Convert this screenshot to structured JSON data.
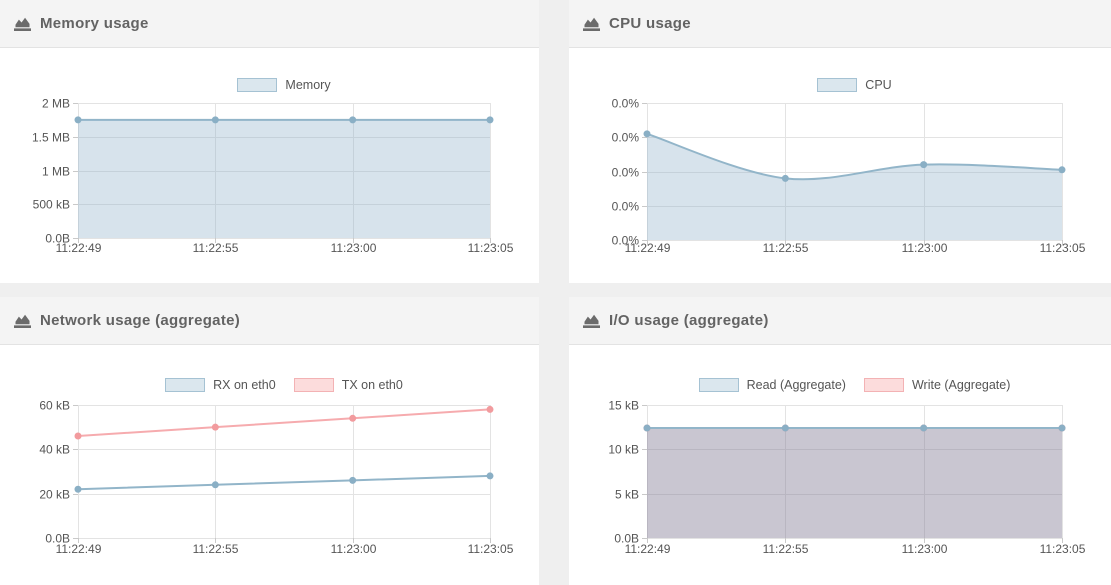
{
  "panels": [
    {
      "title": "Memory usage",
      "icon": "area-chart-icon",
      "chart_data": {
        "type": "area",
        "x": [
          "11:22:49",
          "11:22:55",
          "11:23:00",
          "11:23:05"
        ],
        "y_ticks": [
          "2 MB",
          "1.5 MB",
          "1 MB",
          "500 kB",
          "0.0B"
        ],
        "ylim": [
          0,
          2
        ],
        "y_unit": "MB",
        "grid": true,
        "legend_position": "top-center",
        "smooth": false,
        "series": [
          {
            "name": "Memory",
            "color": "blue",
            "fill": "self",
            "values": [
              1.75,
              1.75,
              1.75,
              1.75
            ]
          }
        ]
      }
    },
    {
      "title": "CPU usage",
      "icon": "area-chart-icon",
      "chart_data": {
        "type": "area",
        "x": [
          "11:22:49",
          "11:22:55",
          "11:23:00",
          "11:23:05"
        ],
        "y_ticks": [
          "0.0%",
          "0.0%",
          "0.0%",
          "0.0%",
          "0.0%"
        ],
        "ylim": [
          0,
          0.04
        ],
        "y_unit": "%",
        "grid": true,
        "legend_position": "top-center",
        "smooth": true,
        "series": [
          {
            "name": "CPU",
            "color": "blue",
            "fill": "self",
            "values": [
              0.031,
              0.018,
              0.022,
              0.0205
            ]
          }
        ]
      }
    },
    {
      "title": "Network usage (aggregate)",
      "icon": "area-chart-icon",
      "chart_data": {
        "type": "line",
        "x": [
          "11:22:49",
          "11:22:55",
          "11:23:00",
          "11:23:05"
        ],
        "y_ticks": [
          "60 kB",
          "40 kB",
          "20 kB",
          "0.0B"
        ],
        "ylim": [
          0,
          60
        ],
        "y_unit": "kB",
        "grid": true,
        "legend_position": "top-center",
        "smooth": false,
        "series": [
          {
            "name": "RX on eth0",
            "color": "blue",
            "fill": "none",
            "values": [
              22,
              24,
              26,
              28
            ]
          },
          {
            "name": "TX on eth0",
            "color": "pink",
            "fill": "none",
            "values": [
              46,
              50,
              54,
              58
            ]
          }
        ]
      }
    },
    {
      "title": "I/O usage (aggregate)",
      "icon": "area-chart-icon",
      "chart_data": {
        "type": "area",
        "x": [
          "11:22:49",
          "11:22:55",
          "11:23:00",
          "11:23:05"
        ],
        "y_ticks": [
          "15 kB",
          "10 kB",
          "5 kB",
          "0.0B"
        ],
        "ylim": [
          0,
          15
        ],
        "y_unit": "kB",
        "grid": true,
        "legend_position": "top-center",
        "smooth": false,
        "series": [
          {
            "name": "Read (Aggregate)",
            "color": "blue",
            "fill": "overlap",
            "values": [
              12.4,
              12.4,
              12.4,
              12.4
            ]
          },
          {
            "name": "Write (Aggregate)",
            "color": "pink",
            "fill": "none",
            "values": [
              12.4,
              12.4,
              12.4,
              12.4
            ]
          }
        ]
      }
    }
  ],
  "palette": {
    "page_background": "#efefef",
    "panel_background": "#ffffff",
    "header_background": "#f4f4f4",
    "header_border": "#e3e3e3",
    "title_color": "#636363",
    "icon_color": "#6b6b6b",
    "grid_color": "#e3e3e3",
    "tick_color": "#c9c9c9",
    "axis_text": "#555555",
    "blue": {
      "line": "#92b5c9",
      "point": "#8aafc5",
      "fill": "rgba(141,176,200,0.35)",
      "box": "#dbe7ee",
      "box_border": "#a5c2d3"
    },
    "pink": {
      "line": "#f6abae",
      "point": "#f29b9e",
      "fill": "rgba(244,176,180,0.35)",
      "box": "#fcdcdc",
      "box_border": "#f3b2b4"
    },
    "overlap_fill": "rgba(126,120,146,0.42)"
  }
}
